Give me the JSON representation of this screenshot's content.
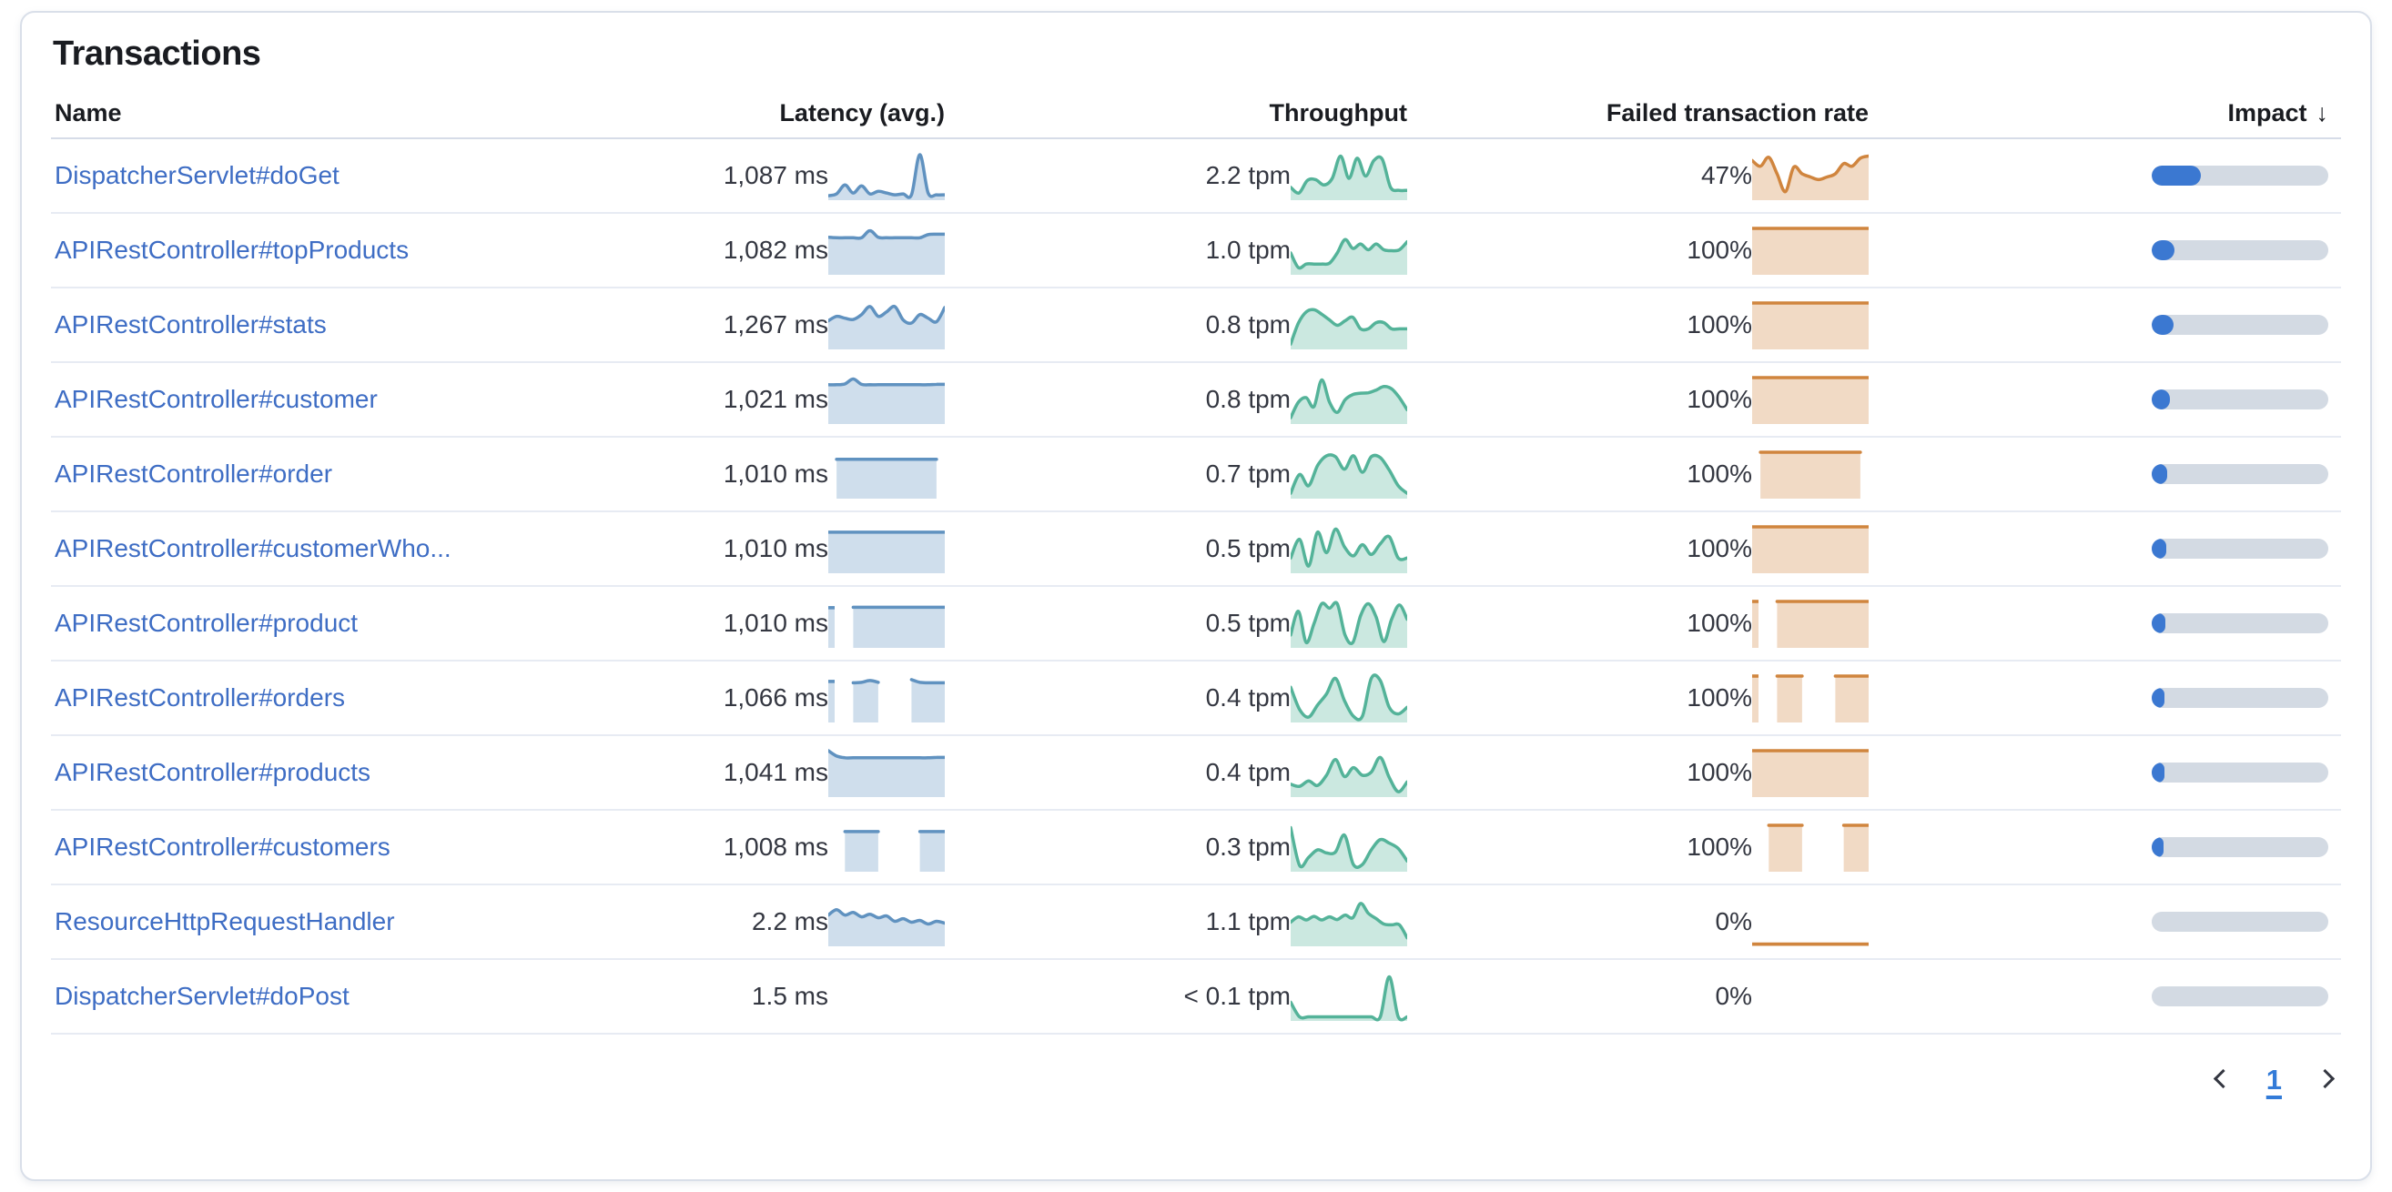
{
  "panel": {
    "title": "Transactions"
  },
  "table": {
    "columns": [
      {
        "label": "Name"
      },
      {
        "label": "Latency (avg.)"
      },
      {
        "label": "Throughput"
      },
      {
        "label": "Failed transaction rate"
      },
      {
        "label": "Impact",
        "sort": "descending",
        "sort_indicator": "↓"
      }
    ]
  },
  "colors": {
    "link": "#3e6dc4",
    "latency_series": "#6092c0",
    "throughput_series": "#54b399",
    "failed_series": "#d0853e",
    "impact_fill": "#3b78d1",
    "impact_track": "#d3dae3"
  },
  "rows": [
    {
      "name": "DispatcherServlet#doGet",
      "latency": "1,087 ms",
      "throughput": "2.2 tpm",
      "failed_rate": "47%",
      "impact_pct": 28,
      "sparklines": {
        "latency": [
          0.06,
          0.1,
          0.3,
          0.12,
          0.28,
          0.1,
          0.16,
          0.12,
          0.08,
          0.1,
          0.08,
          0.98,
          0.12,
          0.08,
          0.08
        ],
        "throughput": [
          0.25,
          0.12,
          0.4,
          0.42,
          0.3,
          0.45,
          0.95,
          0.45,
          0.9,
          0.5,
          0.85,
          0.88,
          0.25,
          0.18,
          0.18
        ],
        "failed": [
          0.85,
          0.72,
          0.92,
          0.55,
          0.15,
          0.7,
          0.55,
          0.48,
          0.42,
          0.48,
          0.55,
          0.78,
          0.72,
          0.9,
          0.95
        ]
      }
    },
    {
      "name": "APIRestController#topProducts",
      "latency": "1,082 ms",
      "throughput": "1.0 tpm",
      "failed_rate": "100%",
      "impact_pct": 13,
      "sparklines": {
        "latency": [
          0.8,
          0.79,
          0.79,
          0.79,
          0.79,
          0.95,
          0.8,
          0.79,
          0.79,
          0.79,
          0.79,
          0.79,
          0.86,
          0.87,
          0.87
        ],
        "throughput": [
          0.45,
          0.12,
          0.2,
          0.2,
          0.2,
          0.22,
          0.45,
          0.75,
          0.55,
          0.65,
          0.52,
          0.65,
          0.52,
          0.5,
          0.52,
          0.7
        ],
        "failed": [
          1,
          1,
          1,
          1,
          1,
          1,
          1,
          1,
          1,
          1,
          1,
          1,
          1,
          1,
          1
        ]
      }
    },
    {
      "name": "APIRestController#stats",
      "latency": "1,267 ms",
      "throughput": "0.8 tpm",
      "failed_rate": "100%",
      "impact_pct": 12.5,
      "sparklines": {
        "latency": [
          0.6,
          0.7,
          0.66,
          0.63,
          0.74,
          0.92,
          0.7,
          0.8,
          0.92,
          0.62,
          0.55,
          0.74,
          0.66,
          0.58,
          0.9
        ],
        "throughput": [
          0.08,
          0.55,
          0.8,
          0.85,
          0.75,
          0.62,
          0.5,
          0.6,
          0.68,
          0.42,
          0.42,
          0.56,
          0.56,
          0.42,
          0.42,
          0.42
        ],
        "failed": [
          1,
          1,
          1,
          1,
          1,
          1,
          1,
          1,
          1,
          1,
          1,
          1,
          1,
          1,
          1
        ]
      }
    },
    {
      "name": "APIRestController#customer",
      "latency": "1,021 ms",
      "throughput": "0.8 tpm",
      "failed_rate": "100%",
      "impact_pct": 10.5,
      "sparklines": {
        "latency": [
          0.84,
          0.84,
          0.86,
          0.97,
          0.85,
          0.84,
          0.84,
          0.84,
          0.84,
          0.84,
          0.84,
          0.84,
          0.84,
          0.85,
          0.85
        ],
        "throughput": [
          0.1,
          0.45,
          0.55,
          0.35,
          0.95,
          0.45,
          0.22,
          0.5,
          0.62,
          0.65,
          0.66,
          0.72,
          0.8,
          0.75,
          0.55,
          0.28
        ],
        "failed": [
          1,
          1,
          1,
          1,
          1,
          1,
          1,
          1,
          1,
          1,
          1,
          1,
          1,
          1,
          1
        ]
      }
    },
    {
      "name": "APIRestController#order",
      "latency": "1,010 ms",
      "throughput": "0.7 tpm",
      "failed_rate": "100%",
      "impact_pct": 9,
      "sparklines": {
        "latency": [
          null,
          0.84,
          0.84,
          0.84,
          0.84,
          0.84,
          0.84,
          0.84,
          0.84,
          0.84,
          0.84,
          0.84,
          0.84,
          0.84,
          null
        ],
        "throughput": [
          0.08,
          0.5,
          0.25,
          0.7,
          0.92,
          0.9,
          0.62,
          0.92,
          0.55,
          0.9,
          0.88,
          0.6,
          0.25,
          0.08
        ],
        "failed": [
          null,
          1,
          1,
          1,
          1,
          1,
          1,
          1,
          1,
          1,
          1,
          1,
          1,
          1,
          null
        ]
      }
    },
    {
      "name": "APIRestController#customerWho...",
      "latency": "1,010 ms",
      "throughput": "0.5 tpm",
      "failed_rate": "100%",
      "impact_pct": 8,
      "sparklines": {
        "latency": [
          0.88,
          0.88,
          0.88,
          0.88,
          0.88,
          0.88,
          0.88,
          0.88,
          0.88,
          0.88,
          0.88,
          0.88,
          0.88,
          0.88,
          0.88
        ],
        "throughput": [
          0.3,
          0.72,
          0.12,
          0.88,
          0.42,
          0.95,
          0.55,
          0.35,
          0.6,
          0.38,
          0.62,
          0.78,
          0.3,
          0.3
        ],
        "failed": [
          1,
          1,
          1,
          1,
          1,
          1,
          1,
          1,
          1,
          1,
          1,
          1,
          1,
          1,
          1
        ]
      }
    },
    {
      "name": "APIRestController#product",
      "latency": "1,010 ms",
      "throughput": "0.5 tpm",
      "failed_rate": "100%",
      "impact_pct": 7.5,
      "sparklines": {
        "latency": [
          0.86,
          null,
          null,
          0.87,
          0.87,
          0.87,
          0.87,
          0.87,
          0.87,
          0.87,
          0.87,
          0.87,
          0.87,
          0.87,
          0.87
        ],
        "throughput": [
          0.25,
          0.78,
          0.08,
          0.5,
          0.95,
          0.85,
          0.95,
          0.25,
          0.08,
          0.68,
          0.95,
          0.65,
          0.1,
          0.6,
          0.92,
          0.6
        ],
        "failed": [
          1,
          null,
          null,
          1,
          1,
          1,
          1,
          1,
          1,
          1,
          1,
          1,
          1,
          1,
          1
        ]
      }
    },
    {
      "name": "APIRestController#orders",
      "latency": "1,066 ms",
      "throughput": "0.4 tpm",
      "failed_rate": "100%",
      "impact_pct": 7,
      "sparklines": {
        "latency": [
          0.88,
          null,
          null,
          0.85,
          0.86,
          0.9,
          0.86,
          null,
          null,
          null,
          0.92,
          0.86,
          0.85,
          0.85,
          0.85
        ],
        "throughput": [
          0.75,
          0.25,
          0.08,
          0.35,
          0.6,
          0.95,
          0.45,
          0.1,
          0.1,
          0.95,
          0.9,
          0.3,
          0.15,
          0.3
        ],
        "failed": [
          1,
          null,
          null,
          1,
          1,
          1,
          1,
          null,
          null,
          null,
          1,
          1,
          1,
          1,
          1
        ]
      }
    },
    {
      "name": "APIRestController#products",
      "latency": "1,041 ms",
      "throughput": "0.4 tpm",
      "failed_rate": "100%",
      "impact_pct": 7,
      "sparklines": {
        "latency": [
          1.0,
          0.88,
          0.84,
          0.84,
          0.84,
          0.84,
          0.84,
          0.84,
          0.84,
          0.84,
          0.84,
          0.84,
          0.84,
          0.85,
          0.85
        ],
        "throughput": [
          0.25,
          0.2,
          0.32,
          0.22,
          0.45,
          0.8,
          0.42,
          0.62,
          0.45,
          0.52,
          0.85,
          0.4,
          0.08,
          0.3
        ],
        "failed": [
          1,
          1,
          1,
          1,
          1,
          1,
          1,
          1,
          1,
          1,
          1,
          1,
          1,
          1,
          1
        ]
      }
    },
    {
      "name": "APIRestController#customers",
      "latency": "1,008 ms",
      "throughput": "0.3 tpm",
      "failed_rate": "100%",
      "impact_pct": 6.5,
      "sparklines": {
        "latency": [
          null,
          null,
          0.86,
          0.86,
          0.86,
          0.86,
          0.86,
          null,
          null,
          null,
          null,
          0.86,
          0.86,
          0.86,
          0.86
        ],
        "throughput": [
          0.95,
          0.1,
          0.28,
          0.45,
          0.38,
          0.4,
          0.78,
          0.12,
          0.12,
          0.45,
          0.68,
          0.6,
          0.48,
          0.2
        ],
        "failed": [
          null,
          null,
          1,
          1,
          1,
          1,
          1,
          null,
          null,
          null,
          null,
          1,
          1,
          1,
          1
        ]
      }
    },
    {
      "name": "ResourceHttpRequestHandler",
      "latency": "2.2 ms",
      "throughput": "1.1 tpm",
      "failed_rate": "0%",
      "impact_pct": 0,
      "sparklines": {
        "latency": [
          0.66,
          0.78,
          0.66,
          0.72,
          0.62,
          0.68,
          0.6,
          0.64,
          0.52,
          0.58,
          0.5,
          0.54,
          0.46,
          0.52,
          0.48
        ],
        "throughput": [
          0.5,
          0.62,
          0.55,
          0.63,
          0.55,
          0.62,
          0.56,
          0.66,
          0.6,
          0.92,
          0.7,
          0.58,
          0.46,
          0.44,
          0.44,
          0.15
        ],
        "failed": [
          0.01,
          0.01,
          0.01,
          0.01,
          0.01,
          0.01,
          0.01,
          0.01,
          0.01,
          0.01,
          0.01,
          0.01,
          0.01,
          0.01,
          0.01
        ]
      }
    },
    {
      "name": "DispatcherServlet#doPost",
      "latency": "1.5 ms",
      "throughput": "< 0.1 tpm",
      "failed_rate": "0%",
      "impact_pct": 0,
      "sparklines": {
        "latency": null,
        "throughput": [
          0.38,
          0.05,
          0.05,
          0.05,
          0.05,
          0.05,
          0.05,
          0.05,
          0.05,
          0.05,
          0.05,
          0.95,
          0.05,
          0.05
        ],
        "failed": null
      }
    }
  ],
  "pagination": {
    "current_page": "1"
  }
}
